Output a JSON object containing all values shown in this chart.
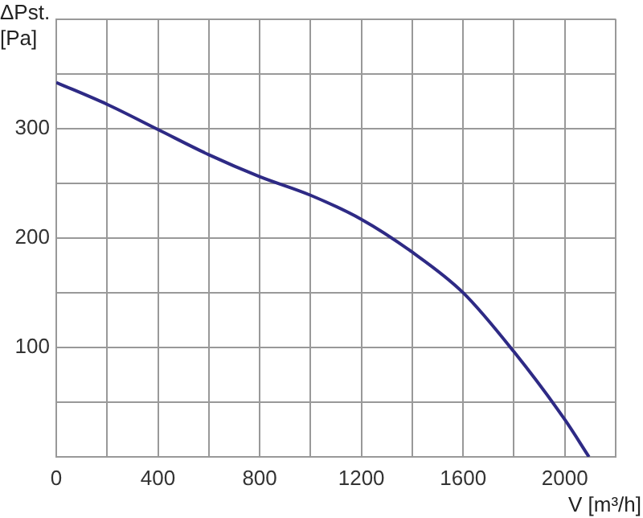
{
  "chart_data": {
    "type": "line",
    "xlabel": "V [m³/h]",
    "ylabel": "ΔPst. [Pa]",
    "series": [
      {
        "color": "#2e2a85",
        "x": [
          0,
          200,
          400,
          600,
          800,
          1000,
          1200,
          1400,
          1600,
          1800,
          2000,
          2095
        ],
        "values": [
          342,
          322,
          299,
          276,
          256,
          239,
          217,
          187,
          150,
          96,
          34,
          0
        ]
      }
    ],
    "xlim": [
      0,
      2200
    ],
    "ylim": [
      0,
      400
    ],
    "xticks": [
      0,
      {
        "value": 200,
        "label": null
      },
      400,
      {
        "value": 600,
        "label": null
      },
      800,
      {
        "value": 1000,
        "label": null
      },
      1200,
      {
        "value": 1400,
        "label": null
      },
      1600,
      {
        "value": 1800,
        "label": null
      },
      2000,
      {
        "value": 2200,
        "label": null
      }
    ],
    "yticks": [
      {
        "value": 0,
        "label": null
      },
      {
        "value": 50,
        "label": null
      },
      100,
      {
        "value": 150,
        "label": null
      },
      200,
      {
        "value": 250,
        "label": null
      },
      300,
      {
        "value": 350,
        "label": null
      },
      {
        "value": 400,
        "label": null
      }
    ],
    "grid": true,
    "legend": false,
    "marker": "none",
    "line_style": "solid"
  }
}
